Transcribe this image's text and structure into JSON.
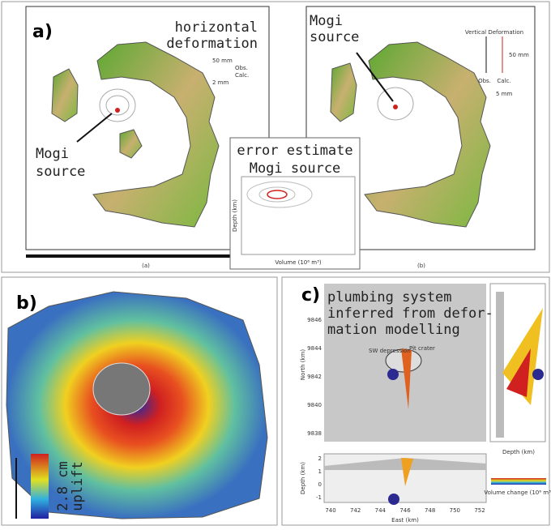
{
  "panel_a": {
    "label": "a)",
    "left_map": {
      "title": [
        "horizontal",
        "deformation"
      ],
      "source": [
        "Mogi",
        "source"
      ],
      "legend": [
        "50 mm",
        "Obs.",
        "Calc.",
        "2 mm"
      ],
      "caption": "(a)"
    },
    "right_map": {
      "source": [
        "Mogi",
        "source"
      ],
      "legend_title": "Vertical Deformation",
      "legend": [
        "Obs.",
        "Calc.",
        "50 mm",
        "5 mm"
      ],
      "caption": "(b)"
    },
    "inset": {
      "title": [
        "error estimate",
        "Mogi source"
      ],
      "x_label": "Volume (10⁶ m³)",
      "y_label": "Depth (km)"
    }
  },
  "panel_b": {
    "label": "b)",
    "scale_value": "2.8 cm",
    "scale_label": "uplift"
  },
  "panel_c": {
    "label": "c)",
    "title": [
      "plumbing system",
      "inferred from defor-",
      "mation modelling"
    ],
    "annotations": [
      "SW depression",
      "Pit crater"
    ],
    "x_label": "East (km)",
    "x_ticks": [
      740,
      742,
      744,
      746,
      748,
      750,
      752
    ],
    "y_label": "North (km)",
    "y_ticks": [
      9846,
      9844,
      9842,
      9840,
      9838
    ],
    "depth_label": "Depth (km)",
    "depth_ticks": [
      2,
      1,
      0,
      -1
    ],
    "legend_title": "Volume change (10⁶ m³)"
  }
}
